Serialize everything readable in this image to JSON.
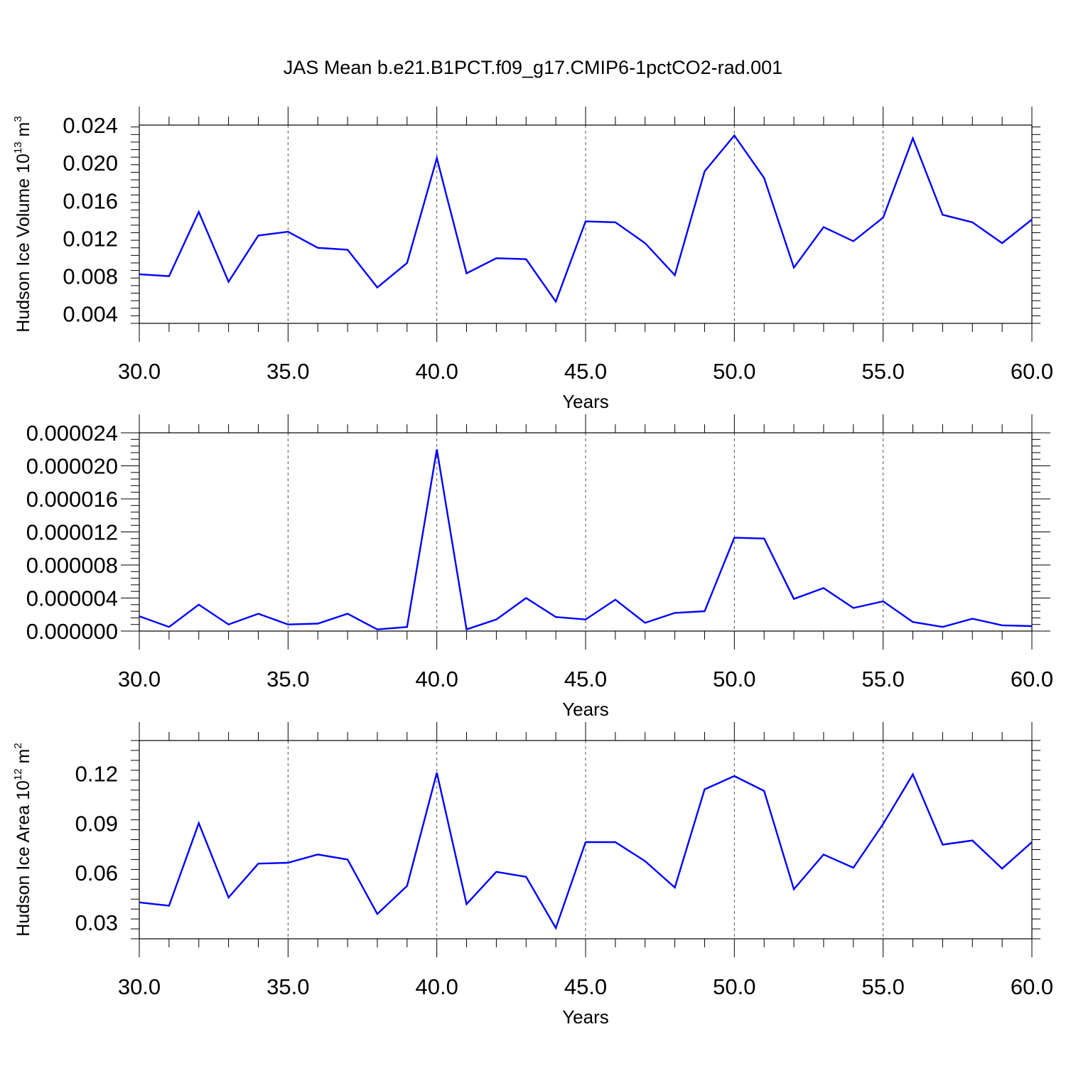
{
  "title": "JAS Mean b.e21.B1PCT.f09_g17.CMIP6-1pctCO2-rad.001",
  "line_color": "#0000ff",
  "chart_data": [
    {
      "type": "line",
      "ylabel": {
        "text": "Hudson Ice Volume 10",
        "sup": "13",
        "unit": " m",
        "unit_sup": "3"
      },
      "xlabel": "Years",
      "xlim": [
        30,
        60
      ],
      "ylim": [
        0.003,
        0.024
      ],
      "xticks": [
        30,
        35,
        40,
        45,
        50,
        55,
        60
      ],
      "xtick_labels": [
        "30.0",
        "35.0",
        "40.0",
        "45.0",
        "50.0",
        "55.0",
        "60.0"
      ],
      "yticks": [
        0.004,
        0.008,
        0.012,
        0.016,
        0.02,
        0.024
      ],
      "ytick_labels": [
        "0.004",
        "0.008",
        "0.012",
        "0.016",
        "0.020",
        "0.024"
      ],
      "y_minor_step": 0.0008,
      "grid": "x-dashed",
      "x": [
        30,
        31,
        32,
        33,
        34,
        35,
        36,
        37,
        38,
        39,
        40,
        41,
        42,
        43,
        44,
        45,
        46,
        47,
        48,
        49,
        50,
        51,
        52,
        53,
        54,
        55,
        56,
        57,
        58,
        59,
        60
      ],
      "values": [
        0.0082,
        0.008,
        0.0148,
        0.0074,
        0.0123,
        0.0127,
        0.011,
        0.0108,
        0.0068,
        0.0094,
        0.0205,
        0.0083,
        0.0099,
        0.0098,
        0.0053,
        0.0138,
        0.0137,
        0.0115,
        0.0081,
        0.0191,
        0.0229,
        0.0184,
        0.0089,
        0.0132,
        0.0117,
        0.0142,
        0.0226,
        0.0145,
        0.0137,
        0.0115,
        0.014
      ]
    },
    {
      "type": "line",
      "ylabel": {
        "text": "",
        "sup": "",
        "unit": "",
        "unit_sup": ""
      },
      "xlabel": "Years",
      "xlim": [
        30,
        60
      ],
      "ylim": [
        0,
        2.4e-05
      ],
      "xticks": [
        30,
        35,
        40,
        45,
        50,
        55,
        60
      ],
      "xtick_labels": [
        "30.0",
        "35.0",
        "40.0",
        "45.0",
        "50.0",
        "55.0",
        "60.0"
      ],
      "yticks": [
        0,
        4e-06,
        8e-06,
        1.2e-05,
        1.6e-05,
        2e-05,
        2.4e-05
      ],
      "ytick_labels": [
        "0.000000",
        "0.000004",
        "0.000008",
        "0.000012",
        "0.000016",
        "0.000020",
        "0.000024"
      ],
      "y_minor_step": 8e-07,
      "grid": "x-dashed",
      "x": [
        30,
        31,
        32,
        33,
        34,
        35,
        36,
        37,
        38,
        39,
        40,
        41,
        42,
        43,
        44,
        45,
        46,
        47,
        48,
        49,
        50,
        51,
        52,
        53,
        54,
        55,
        56,
        57,
        58,
        59,
        60
      ],
      "values": [
        1.8e-06,
        5e-07,
        3.2e-06,
        8e-07,
        2.1e-06,
        8e-07,
        9e-07,
        2.1e-06,
        2e-07,
        5e-07,
        2.2e-05,
        2e-07,
        1.4e-06,
        4e-06,
        1.7e-06,
        1.4e-06,
        3.8e-06,
        1e-06,
        2.2e-06,
        2.4e-06,
        1.13e-05,
        1.12e-05,
        3.9e-06,
        5.2e-06,
        2.8e-06,
        3.6e-06,
        1.1e-06,
        5e-07,
        1.5e-06,
        7e-07,
        6e-07
      ]
    },
    {
      "type": "line",
      "ylabel": {
        "text": "Hudson Ice Area 10",
        "sup": "12",
        "unit": " m",
        "unit_sup": "2"
      },
      "xlabel": "Years",
      "xlim": [
        30,
        60
      ],
      "ylim": [
        0.02,
        0.14
      ],
      "xticks": [
        30,
        35,
        40,
        45,
        50,
        55,
        60
      ],
      "xtick_labels": [
        "30.0",
        "35.0",
        "40.0",
        "45.0",
        "50.0",
        "55.0",
        "60.0"
      ],
      "yticks": [
        0.03,
        0.06,
        0.09,
        0.12
      ],
      "ytick_labels": [
        "0.03",
        "0.06",
        "0.09",
        "0.12"
      ],
      "y_minor_step": 0.006,
      "grid": "x-dashed",
      "x": [
        30,
        31,
        32,
        33,
        34,
        35,
        36,
        37,
        38,
        39,
        40,
        41,
        42,
        43,
        44,
        45,
        46,
        47,
        48,
        49,
        50,
        51,
        52,
        53,
        54,
        55,
        56,
        57,
        58,
        59,
        60
      ],
      "values": [
        0.042,
        0.04,
        0.09,
        0.045,
        0.0655,
        0.066,
        0.071,
        0.068,
        0.035,
        0.052,
        0.1205,
        0.041,
        0.0605,
        0.0575,
        0.0265,
        0.0785,
        0.0785,
        0.067,
        0.051,
        0.1105,
        0.1185,
        0.1095,
        0.05,
        0.071,
        0.063,
        0.0895,
        0.1195,
        0.077,
        0.0795,
        0.0625,
        0.0785
      ]
    }
  ]
}
